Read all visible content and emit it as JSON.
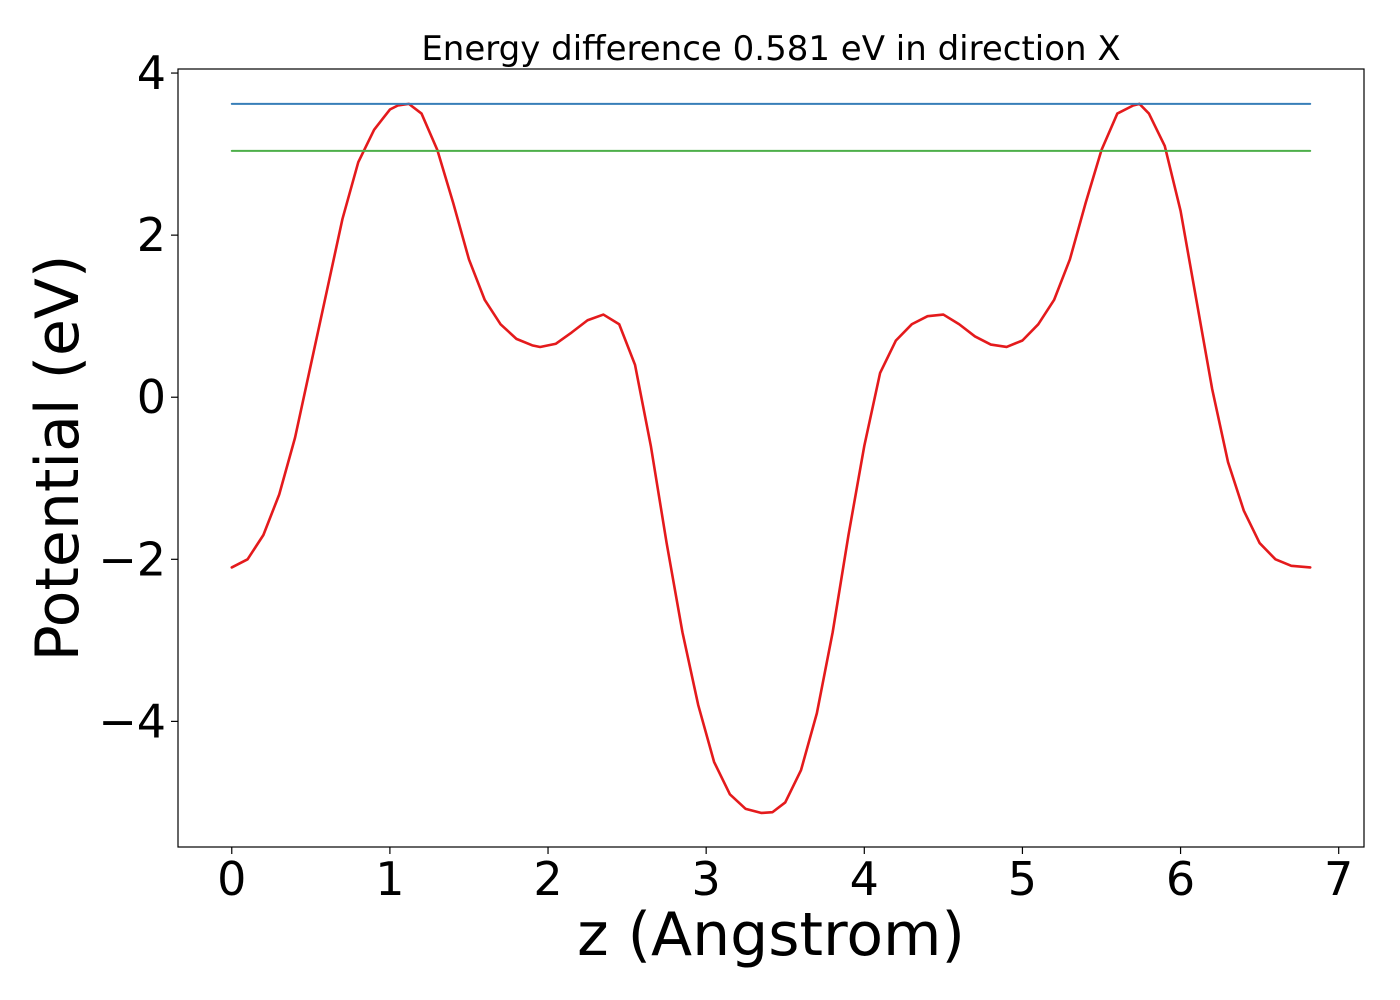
{
  "chart_data": {
    "type": "line",
    "title": "Energy difference 0.581 eV in direction X",
    "xlabel": "z (Angstrom)",
    "ylabel": "Potential (eV)",
    "xlim": [
      -0.34,
      7.16
    ],
    "ylim": [
      -5.55,
      4.05
    ],
    "x_ticks": [
      0,
      1,
      2,
      3,
      4,
      5,
      6,
      7
    ],
    "x_tick_labels": [
      "0",
      "1",
      "2",
      "3",
      "4",
      "5",
      "6",
      "7"
    ],
    "y_ticks": [
      4,
      2,
      0,
      -2,
      -4
    ],
    "y_tick_labels": [
      "4",
      "2",
      "0",
      "−2",
      "−4"
    ],
    "grid": false,
    "colors": {
      "potential": "#e41a1c",
      "max_level": "#377eb8",
      "min_level": "#4daf4a"
    },
    "series": [
      {
        "key": "potential",
        "x": [
          0.0,
          0.1,
          0.2,
          0.3,
          0.4,
          0.5,
          0.6,
          0.7,
          0.8,
          0.9,
          1.0,
          1.05,
          1.12,
          1.2,
          1.3,
          1.4,
          1.5,
          1.6,
          1.7,
          1.8,
          1.9,
          1.95,
          2.05,
          2.15,
          2.25,
          2.35,
          2.45,
          2.55,
          2.65,
          2.75,
          2.85,
          2.95,
          3.05,
          3.15,
          3.25,
          3.35,
          3.42,
          3.5,
          3.6,
          3.7,
          3.8,
          3.9,
          4.0,
          4.1,
          4.2,
          4.3,
          4.4,
          4.5,
          4.6,
          4.7,
          4.8,
          4.9,
          5.0,
          5.1,
          5.2,
          5.3,
          5.4,
          5.5,
          5.6,
          5.7,
          5.74,
          5.8,
          5.9,
          6.0,
          6.1,
          6.2,
          6.3,
          6.4,
          6.5,
          6.6,
          6.7,
          6.82
        ],
        "y": [
          -2.1,
          -2.0,
          -1.7,
          -1.2,
          -0.5,
          0.4,
          1.3,
          2.2,
          2.9,
          3.3,
          3.55,
          3.6,
          3.62,
          3.5,
          3.05,
          2.4,
          1.7,
          1.2,
          0.9,
          0.72,
          0.64,
          0.62,
          0.66,
          0.8,
          0.95,
          1.02,
          0.9,
          0.4,
          -0.6,
          -1.8,
          -2.9,
          -3.8,
          -4.5,
          -4.9,
          -5.08,
          -5.13,
          -5.12,
          -5.0,
          -4.6,
          -3.9,
          -2.9,
          -1.7,
          -0.6,
          0.3,
          0.7,
          0.9,
          1.0,
          1.02,
          0.9,
          0.75,
          0.65,
          0.62,
          0.7,
          0.9,
          1.2,
          1.7,
          2.4,
          3.05,
          3.5,
          3.6,
          3.62,
          3.5,
          3.1,
          2.3,
          1.2,
          0.1,
          -0.8,
          -1.4,
          -1.8,
          -2.0,
          -2.08,
          -2.1
        ]
      },
      {
        "key": "max_level",
        "x": [
          0.0,
          6.82
        ],
        "y": [
          3.62,
          3.62
        ]
      },
      {
        "key": "min_level",
        "x": [
          0.0,
          6.82
        ],
        "y": [
          3.039,
          3.039
        ]
      }
    ]
  }
}
